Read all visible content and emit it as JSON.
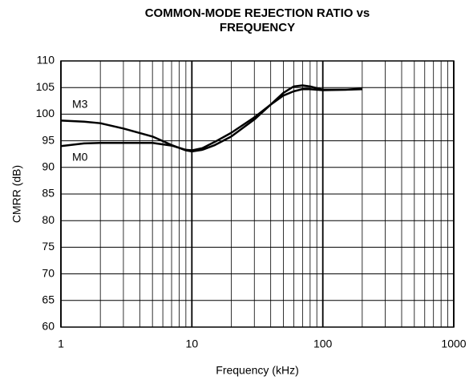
{
  "chart_data": {
    "type": "line",
    "title": [
      "COMMON-MODE REJECTION RATIO vs",
      "FREQUENCY"
    ],
    "x_label": "Frequency (kHz)",
    "y_label": "CMRR (dB)",
    "x": [
      1,
      1.5,
      2,
      3,
      5,
      7,
      9,
      10,
      12,
      15,
      20,
      30,
      40,
      50,
      60,
      70,
      80,
      100,
      150,
      200
    ],
    "series": [
      {
        "name": "M3",
        "color": "#000000",
        "values": [
          98.8,
          98.6,
          98.3,
          97.3,
          95.8,
          94.2,
          93.2,
          93.0,
          93.3,
          94.2,
          95.8,
          99.0,
          101.8,
          104.0,
          105.2,
          105.4,
          105.2,
          104.6,
          104.6,
          104.7
        ]
      },
      {
        "name": "M0",
        "color": "#000000",
        "values": [
          94.0,
          94.5,
          94.6,
          94.6,
          94.6,
          94.1,
          93.3,
          93.2,
          93.6,
          94.8,
          96.5,
          99.4,
          101.8,
          103.5,
          104.3,
          104.7,
          104.7,
          104.5,
          104.6,
          104.8
        ]
      }
    ],
    "xscale": "log",
    "xlim": [
      1,
      1000
    ],
    "xticks": [
      1,
      10,
      100,
      1000
    ],
    "xminorticks": [
      2,
      3,
      4,
      5,
      6,
      7,
      8,
      9,
      20,
      30,
      40,
      50,
      60,
      70,
      80,
      90,
      200,
      300,
      400,
      500,
      600,
      700,
      800,
      900
    ],
    "ylim": [
      60,
      110
    ],
    "yticks": [
      60,
      65,
      70,
      75,
      80,
      85,
      90,
      95,
      100,
      105,
      110
    ],
    "grid": true
  }
}
